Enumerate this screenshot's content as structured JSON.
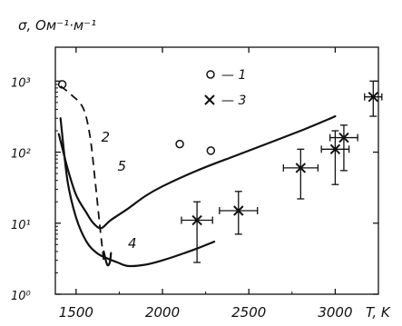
{
  "chart_data": {
    "type": "line",
    "xlabel": "T, K",
    "ylabel": "σ, Ом⁻¹·м⁻¹",
    "x_ticks": [
      "1500",
      "2000",
      "2500",
      "3000"
    ],
    "y_ticks": [
      "10⁰",
      "10¹",
      "10²",
      "10³"
    ],
    "xlim": [
      1380,
      3250
    ],
    "ylim": [
      1,
      3000
    ],
    "yscale": "log",
    "grid": false,
    "legend_position": "top-right",
    "legend": [
      {
        "marker": "circle",
        "label": "— 1"
      },
      {
        "marker": "cross",
        "label": "— 3"
      }
    ],
    "series": [
      {
        "id": "1",
        "kind": "points",
        "marker": "circle",
        "points": [
          [
            1420,
            900
          ],
          [
            2100,
            130
          ],
          [
            2280,
            105
          ]
        ]
      },
      {
        "id": "2",
        "kind": "dashed-curve",
        "label": "2",
        "points": [
          [
            1410,
            850
          ],
          [
            1470,
            650
          ],
          [
            1540,
            420
          ],
          [
            1580,
            170
          ],
          [
            1610,
            40
          ],
          [
            1640,
            8
          ],
          [
            1660,
            3
          ]
        ]
      },
      {
        "id": "2-tail",
        "kind": "line",
        "points": [
          [
            1660,
            4.0
          ],
          [
            1680,
            2.6
          ],
          [
            1695,
            2.8
          ],
          [
            1702,
            3.8
          ]
        ]
      },
      {
        "id": "3",
        "kind": "errorbar",
        "marker": "cross",
        "points": [
          {
            "x": 2200,
            "y": 11,
            "xerr": 90,
            "ylo": 2.8,
            "yhi": 20
          },
          {
            "x": 2440,
            "y": 15,
            "xerr": 110,
            "ylo": 7,
            "yhi": 28
          },
          {
            "x": 2800,
            "y": 60,
            "xerr": 100,
            "ylo": 22,
            "yhi": 110
          },
          {
            "x": 3000,
            "y": 110,
            "xerr": 80,
            "ylo": 35,
            "yhi": 200
          },
          {
            "x": 3050,
            "y": 160,
            "xerr": 80,
            "ylo": 55,
            "yhi": 240
          },
          {
            "x": 3220,
            "y": 600,
            "xerr": 50,
            "ylo": 320,
            "yhi": 1000
          }
        ]
      },
      {
        "id": "4",
        "kind": "line",
        "label": "4",
        "points": [
          [
            1410,
            300
          ],
          [
            1450,
            40
          ],
          [
            1500,
            12
          ],
          [
            1560,
            5.5
          ],
          [
            1620,
            3.8
          ],
          [
            1680,
            3.2
          ],
          [
            1740,
            2.8
          ],
          [
            1800,
            2.5
          ],
          [
            1900,
            2.6
          ],
          [
            2000,
            3.0
          ],
          [
            2100,
            3.6
          ],
          [
            2200,
            4.4
          ],
          [
            2300,
            5.5
          ]
        ]
      },
      {
        "id": "5",
        "kind": "line",
        "label": "5",
        "points": [
          [
            1400,
            180
          ],
          [
            1450,
            60
          ],
          [
            1500,
            25
          ],
          [
            1560,
            14
          ],
          [
            1600,
            10
          ],
          [
            1645,
            8.5
          ],
          [
            1700,
            11
          ],
          [
            1800,
            16
          ],
          [
            1900,
            24
          ],
          [
            2000,
            33
          ],
          [
            2200,
            55
          ],
          [
            2400,
            85
          ],
          [
            2600,
            130
          ],
          [
            2800,
            200
          ],
          [
            2960,
            290
          ],
          [
            3000,
            320
          ]
        ]
      }
    ]
  }
}
